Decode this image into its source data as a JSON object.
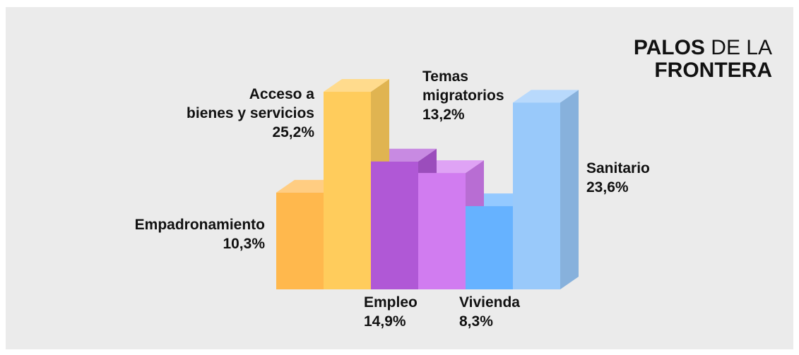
{
  "chart_data": {
    "type": "bar3d",
    "title": [
      "PALOS",
      "DE LA",
      "FRONTERA"
    ],
    "categories": [
      "Empadronamiento",
      "Acceso a\nbienes y servicios",
      "Empleo",
      "Temas\nmigratorios",
      "Vivienda",
      "Sanitario"
    ],
    "values": [
      10.3,
      25.2,
      14.9,
      13.2,
      8.3,
      23.6
    ],
    "value_labels": [
      "10,3%",
      "25,2%",
      "14,9%",
      "13,2%",
      "8,3%",
      "23,6%"
    ],
    "colors": [
      "#ffb84d",
      "#ffcc5c",
      "#b058d6",
      "#d17cf0",
      "#66b2ff",
      "#99c9fa"
    ],
    "ylim": [
      -4,
      30
    ]
  }
}
